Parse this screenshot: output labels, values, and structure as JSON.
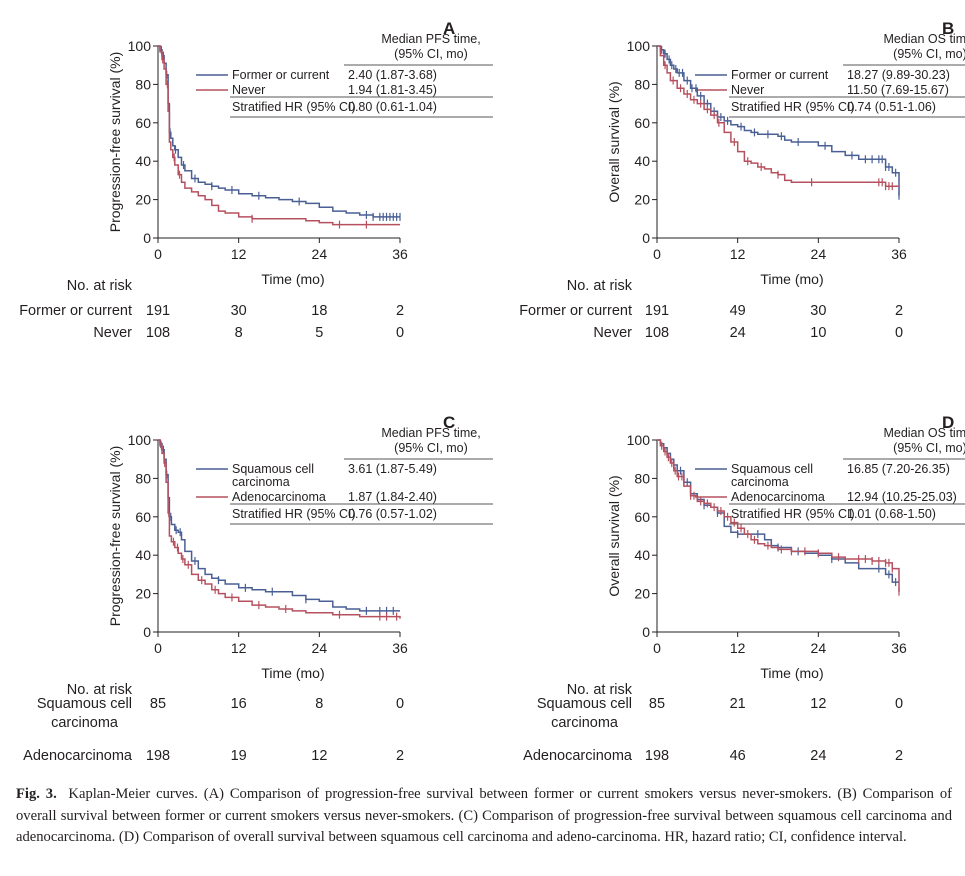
{
  "colors": {
    "blue": "#4a5f94",
    "red": "#b6505f",
    "text": "#231f20"
  },
  "chart_data": [
    {
      "type": "line",
      "panel": "A",
      "ylabel": "Progression-free survival (%)",
      "xlabel": "Time (mo)",
      "xlim": [
        0,
        36
      ],
      "ylim": [
        0,
        100
      ],
      "xticks": [
        0,
        12,
        24,
        36
      ],
      "yticks": [
        0,
        20,
        40,
        60,
        80,
        100
      ],
      "legend": {
        "title_line1": "Median PFS time,",
        "title_line2": "(95% CI, mo)",
        "hr_label": "Stratified HR (95% CI)",
        "hr_value": "0.80 (0.61-1.04)"
      },
      "series": [
        {
          "name": "Former or current",
          "name2": "",
          "median": "2.40 (1.87-3.68)",
          "color": "blue",
          "x": [
            0,
            0.3,
            0.6,
            0.9,
            1.2,
            1.5,
            1.7,
            1.9,
            2.2,
            2.5,
            3,
            3.5,
            4,
            5,
            6,
            7,
            8,
            9,
            10,
            12,
            14,
            16,
            18,
            20,
            22,
            24,
            26,
            28,
            30,
            32,
            34,
            36
          ],
          "y": [
            100,
            98,
            95,
            91,
            85,
            70,
            55,
            52,
            48,
            46,
            42,
            38,
            35,
            31,
            29,
            28,
            27,
            26,
            25,
            23,
            22,
            21,
            20,
            19,
            18,
            16,
            14,
            13,
            12,
            11,
            11,
            11
          ],
          "censor_x": [
            0.5,
            0.8,
            1.3,
            1.8,
            2.6,
            3.8,
            5.5,
            8,
            11,
            15,
            21,
            31,
            32,
            33,
            33.5,
            34,
            34.5,
            35,
            35.5,
            36
          ]
        },
        {
          "name": "Never",
          "name2": "",
          "median": "1.94 (1.81-3.45)",
          "color": "red",
          "x": [
            0,
            0.3,
            0.6,
            0.9,
            1.2,
            1.5,
            1.7,
            1.9,
            2.2,
            2.5,
            3,
            3.5,
            4,
            5,
            6,
            7,
            8,
            9,
            10,
            12,
            14,
            16,
            18,
            20,
            22,
            24,
            26,
            28,
            30,
            32,
            34,
            36
          ],
          "y": [
            100,
            97,
            93,
            88,
            80,
            66,
            50,
            46,
            42,
            38,
            33,
            29,
            26,
            24,
            22,
            20,
            17,
            14,
            13,
            11,
            10,
            10,
            10,
            10,
            9,
            8,
            7,
            7,
            7,
            7,
            7,
            7
          ],
          "censor_x": [
            0.7,
            1.4,
            2.4,
            3.2,
            14,
            27,
            31
          ]
        }
      ],
      "risk": {
        "header": "No. at risk",
        "rows": [
          {
            "label1": "Former or current",
            "label2": "",
            "values": [
              "191",
              "30",
              "18",
              "2"
            ]
          },
          {
            "label1": "Never",
            "label2": "",
            "values": [
              "108",
              "8",
              "5",
              "0"
            ]
          }
        ]
      }
    },
    {
      "type": "line",
      "panel": "B",
      "ylabel": "Overall survival (%)",
      "xlabel": "Time (mo)",
      "xlim": [
        0,
        36
      ],
      "ylim": [
        0,
        100
      ],
      "xticks": [
        0,
        12,
        24,
        36
      ],
      "yticks": [
        0,
        20,
        40,
        60,
        80,
        100
      ],
      "legend": {
        "title_line1": "Median OS time,",
        "title_line2": "(95% CI, mo)",
        "hr_label": "Stratified HR (95% CI)",
        "hr_value": "0.74 (0.51-1.06)"
      },
      "series": [
        {
          "name": "Former or current",
          "name2": "",
          "median": "18.27 (9.89-30.23)",
          "color": "blue",
          "x": [
            0,
            0.5,
            1,
            1.5,
            2,
            2.5,
            3,
            4,
            5,
            6,
            7,
            8,
            9,
            10,
            11,
            12,
            13,
            14,
            15,
            16,
            17,
            18,
            19,
            20,
            22,
            24,
            26,
            28,
            30,
            32,
            34,
            35,
            36
          ],
          "y": [
            100,
            98,
            96,
            93,
            90,
            88,
            86,
            82,
            78,
            74,
            70,
            66,
            63,
            61,
            59,
            58,
            56,
            55,
            54,
            54,
            54,
            53,
            51,
            50,
            50,
            48,
            45,
            43,
            41,
            41,
            37,
            34,
            22
          ],
          "censor_x": [
            0.7,
            1.2,
            1.8,
            2.2,
            2.8,
            3.3,
            3.8,
            4.5,
            5.2,
            5.8,
            6.5,
            7.5,
            8.5,
            9.5,
            10.5,
            12.5,
            14.5,
            16.5,
            18.5,
            21,
            25,
            29,
            31,
            32,
            33,
            33.5,
            34,
            34.5,
            35.5,
            36
          ]
        },
        {
          "name": "Never",
          "name2": "",
          "median": "11.50 (7.69-15.67)",
          "color": "red",
          "x": [
            0,
            0.5,
            1,
            1.5,
            2,
            3,
            4,
            5,
            6,
            7,
            8,
            9,
            10,
            11,
            12,
            13,
            14,
            15,
            16,
            17,
            18,
            19,
            20,
            22,
            24,
            26,
            28,
            30,
            32,
            34,
            36
          ],
          "y": [
            100,
            95,
            90,
            86,
            82,
            78,
            75,
            72,
            70,
            67,
            64,
            60,
            55,
            50,
            45,
            40,
            39,
            37,
            36,
            34,
            33,
            30,
            29,
            29,
            29,
            29,
            29,
            29,
            29,
            27,
            27
          ],
          "censor_x": [
            1.2,
            2.4,
            3.5,
            4.5,
            5.5,
            6.5,
            7.5,
            8.5,
            9.2,
            11.5,
            13.5,
            15.5,
            18,
            23,
            33,
            33.5,
            34,
            34.5,
            35
          ]
        }
      ],
      "risk": {
        "header": "No. at risk",
        "rows": [
          {
            "label1": "Former or current",
            "label2": "",
            "values": [
              "191",
              "49",
              "30",
              "2"
            ]
          },
          {
            "label1": "Never",
            "label2": "",
            "values": [
              "108",
              "24",
              "10",
              "0"
            ]
          }
        ]
      }
    },
    {
      "type": "line",
      "panel": "C",
      "ylabel": "Progression-free survival (%)",
      "xlabel": "Time (mo)",
      "xlim": [
        0,
        36
      ],
      "ylim": [
        0,
        100
      ],
      "xticks": [
        0,
        12,
        24,
        36
      ],
      "yticks": [
        0,
        20,
        40,
        60,
        80,
        100
      ],
      "legend": {
        "title_line1": "Median PFS time,",
        "title_line2": "(95% CI, mo)",
        "hr_label": "Stratified HR (95% CI)",
        "hr_value": "0.76 (0.57-1.02)"
      },
      "series": [
        {
          "name": "Squamous cell",
          "name2": "carcinoma",
          "median": "3.61 (1.87-5.49)",
          "color": "blue",
          "x": [
            0,
            0.3,
            0.6,
            0.9,
            1.2,
            1.5,
            1.7,
            2,
            2.5,
            3,
            3.5,
            4,
            5,
            6,
            7,
            8,
            9,
            10,
            12,
            14,
            16,
            18,
            20,
            22,
            24,
            26,
            28,
            30,
            32,
            34,
            36
          ],
          "y": [
            100,
            98,
            95,
            90,
            82,
            70,
            60,
            56,
            53,
            52,
            48,
            42,
            37,
            33,
            30,
            28,
            27,
            25,
            23,
            22,
            21,
            21,
            19,
            17,
            16,
            13,
            12,
            11,
            11,
            11,
            11
          ],
          "censor_x": [
            0.4,
            0.8,
            1.3,
            1.9,
            2.7,
            3.3,
            5.5,
            9,
            13,
            17,
            22,
            31,
            33,
            34,
            35
          ]
        },
        {
          "name": "Adenocarcinoma",
          "name2": "",
          "median": "1.87 (1.84-2.40)",
          "color": "red",
          "x": [
            0,
            0.3,
            0.6,
            0.9,
            1.2,
            1.5,
            1.7,
            2,
            2.5,
            3,
            3.5,
            4,
            5,
            6,
            7,
            8,
            9,
            10,
            12,
            14,
            16,
            18,
            20,
            22,
            24,
            26,
            28,
            30,
            32,
            34,
            36
          ],
          "y": [
            100,
            97,
            93,
            88,
            78,
            62,
            50,
            47,
            44,
            41,
            38,
            35,
            30,
            27,
            25,
            22,
            20,
            18,
            16,
            14,
            13,
            12,
            11,
            10,
            10,
            9,
            9,
            8,
            8,
            8,
            7
          ],
          "censor_x": [
            0.5,
            1,
            1.6,
            2.3,
            2.9,
            3.7,
            4.5,
            6.5,
            8.5,
            11,
            15,
            19,
            27,
            33,
            34,
            35.5
          ]
        }
      ],
      "risk": {
        "header": "No. at risk",
        "rows": [
          {
            "label1": "Squamous cell",
            "label2": "carcinoma",
            "values": [
              "85",
              "16",
              "8",
              "0"
            ]
          },
          {
            "label1": "Adenocarcinoma",
            "label2": "",
            "values": [
              "198",
              "19",
              "12",
              "2"
            ]
          }
        ]
      }
    },
    {
      "type": "line",
      "panel": "D",
      "ylabel": "Overall survival (%)",
      "xlabel": "Time (mo)",
      "xlim": [
        0,
        36
      ],
      "ylim": [
        0,
        100
      ],
      "xticks": [
        0,
        12,
        24,
        36
      ],
      "yticks": [
        0,
        20,
        40,
        60,
        80,
        100
      ],
      "legend": {
        "title_line1": "Median OS time,",
        "title_line2": "(95% CI, mo)",
        "hr_label": "Stratified HR (95% CI)",
        "hr_value": "1.01 (0.68-1.50)"
      },
      "series": [
        {
          "name": "Squamous cell",
          "name2": "carcinoma",
          "median": "16.85 (7.20-26.35)",
          "color": "blue",
          "x": [
            0,
            0.5,
            1,
            1.5,
            2,
            2.5,
            3,
            4,
            5,
            6,
            7,
            8,
            9,
            10,
            11,
            12,
            13,
            14,
            15,
            16,
            17,
            18,
            19,
            20,
            22,
            24,
            26,
            28,
            30,
            32,
            34,
            35,
            36
          ],
          "y": [
            100,
            98,
            96,
            93,
            90,
            87,
            84,
            78,
            72,
            69,
            66,
            65,
            62,
            55,
            52,
            51,
            51,
            51,
            51,
            48,
            45,
            44,
            44,
            42,
            41,
            40,
            38,
            36,
            33,
            33,
            30,
            26,
            26
          ],
          "censor_x": [
            1,
            1.5,
            2,
            2.5,
            3,
            3.5,
            4,
            4.5,
            7,
            9,
            12,
            15,
            18,
            21,
            26,
            33,
            34.5,
            35.5
          ]
        },
        {
          "name": "Adenocarcinoma",
          "name2": "",
          "median": "12.94 (10.25-25.03)",
          "color": "red",
          "x": [
            0,
            0.5,
            1,
            1.5,
            2,
            2.5,
            3,
            4,
            5,
            6,
            7,
            8,
            9,
            10,
            11,
            12,
            13,
            14,
            15,
            16,
            17,
            18,
            19,
            20,
            22,
            24,
            26,
            28,
            30,
            32,
            34,
            35,
            36
          ],
          "y": [
            100,
            97,
            94,
            91,
            88,
            84,
            81,
            76,
            71,
            68,
            67,
            65,
            63,
            60,
            57,
            54,
            51,
            48,
            46,
            45,
            44,
            43,
            43,
            42,
            42,
            41,
            39,
            38,
            38,
            37,
            36,
            33,
            21
          ],
          "censor_x": [
            0.7,
            1.2,
            1.7,
            2.2,
            2.7,
            3.2,
            3.7,
            5,
            5.5,
            6.5,
            7.5,
            8.5,
            9.5,
            10.5,
            11.5,
            12.5,
            13.5,
            14.5,
            16.5,
            18.5,
            20,
            22,
            24,
            27,
            30,
            31,
            32,
            33,
            34,
            34.5,
            35,
            36
          ]
        }
      ],
      "risk": {
        "header": "No. at risk",
        "rows": [
          {
            "label1": "Squamous cell",
            "label2": "carcinoma",
            "values": [
              "85",
              "21",
              "12",
              "0"
            ]
          },
          {
            "label1": "Adenocarcinoma",
            "label2": "",
            "values": [
              "198",
              "46",
              "24",
              "2"
            ]
          }
        ]
      }
    }
  ],
  "caption": {
    "label": "Fig. 3.",
    "text": "Kaplan-Meier curves. (A) Comparison of progression-free survival between former or current smokers versus never-smokers. (B) Comparison of overall survival between former or current smokers versus never-smokers. (C) Comparison of progression-free survival between squamous cell carcinoma and adenocarcinoma. (D) Comparison of overall survival between squamous cell carcinoma and adeno-carcinoma. HR, hazard ratio; CI, confidence interval."
  }
}
